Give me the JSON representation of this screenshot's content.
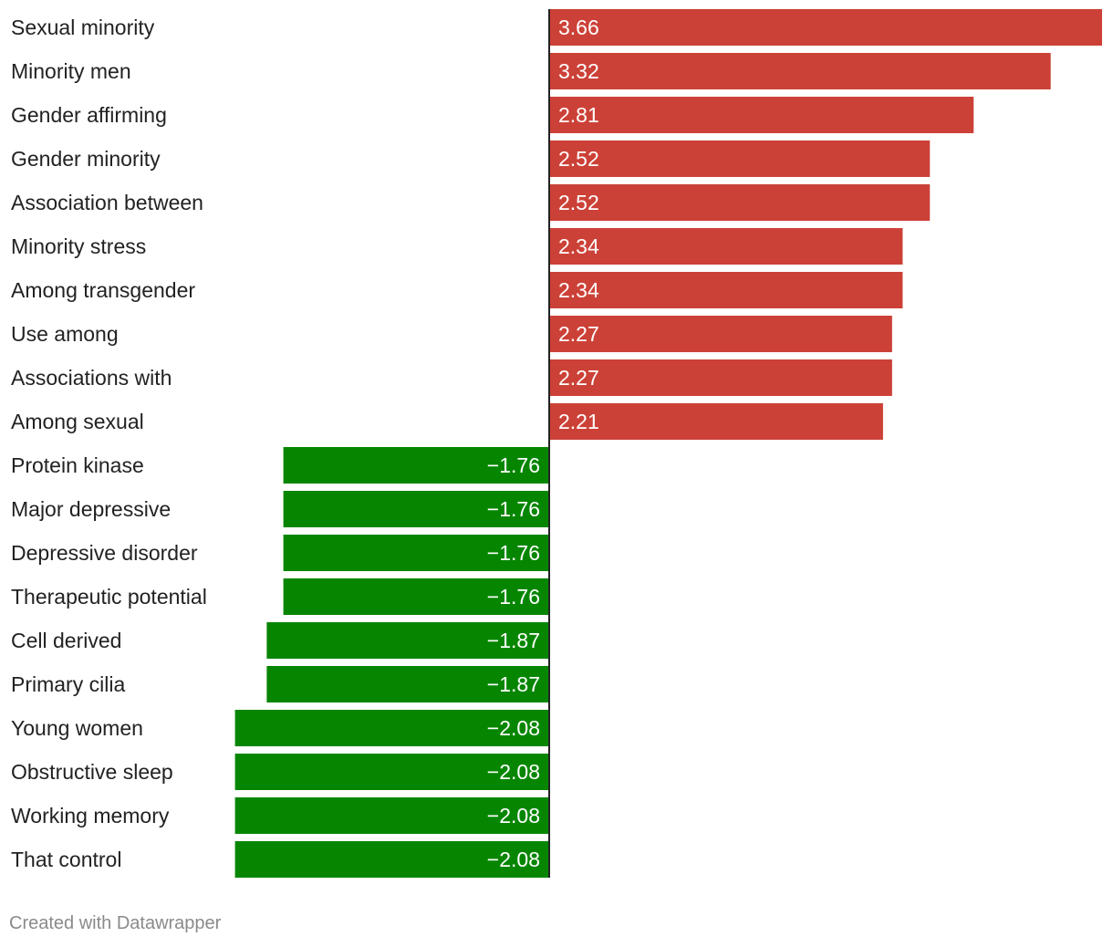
{
  "chart_data": {
    "type": "bar",
    "orientation": "horizontal",
    "categories": [
      "Sexual minority",
      "Minority men",
      "Gender affirming",
      "Gender minority",
      "Association between",
      "Minority stress",
      "Among transgender",
      "Use among",
      "Associations with",
      "Among sexual",
      "Protein kinase",
      "Major depressive",
      "Depressive disorder",
      "Therapeutic potential",
      "Cell derived",
      "Primary cilia",
      "Young women",
      "Obstructive sleep",
      "Working memory",
      "That control"
    ],
    "values": [
      3.66,
      3.32,
      2.81,
      2.52,
      2.52,
      2.34,
      2.34,
      2.27,
      2.27,
      2.21,
      -1.76,
      -1.76,
      -1.76,
      -1.76,
      -1.87,
      -1.87,
      -2.08,
      -2.08,
      -2.08,
      -2.08
    ],
    "value_labels": [
      "3.66",
      "3.32",
      "2.81",
      "2.52",
      "2.52",
      "2.34",
      "2.34",
      "2.27",
      "2.27",
      "2.21",
      "−1.76",
      "−1.76",
      "−1.76",
      "−1.76",
      "−1.87",
      "−1.87",
      "−2.08",
      "−2.08",
      "−2.08",
      "−2.08"
    ],
    "colors": {
      "positive": "#cc4137",
      "negative": "#068600",
      "axis": "#222222"
    },
    "xlim": [
      -3.62,
      3.66
    ],
    "title": "",
    "xlabel": "",
    "ylabel": ""
  },
  "footer": {
    "credit": "Created with Datawrapper"
  }
}
